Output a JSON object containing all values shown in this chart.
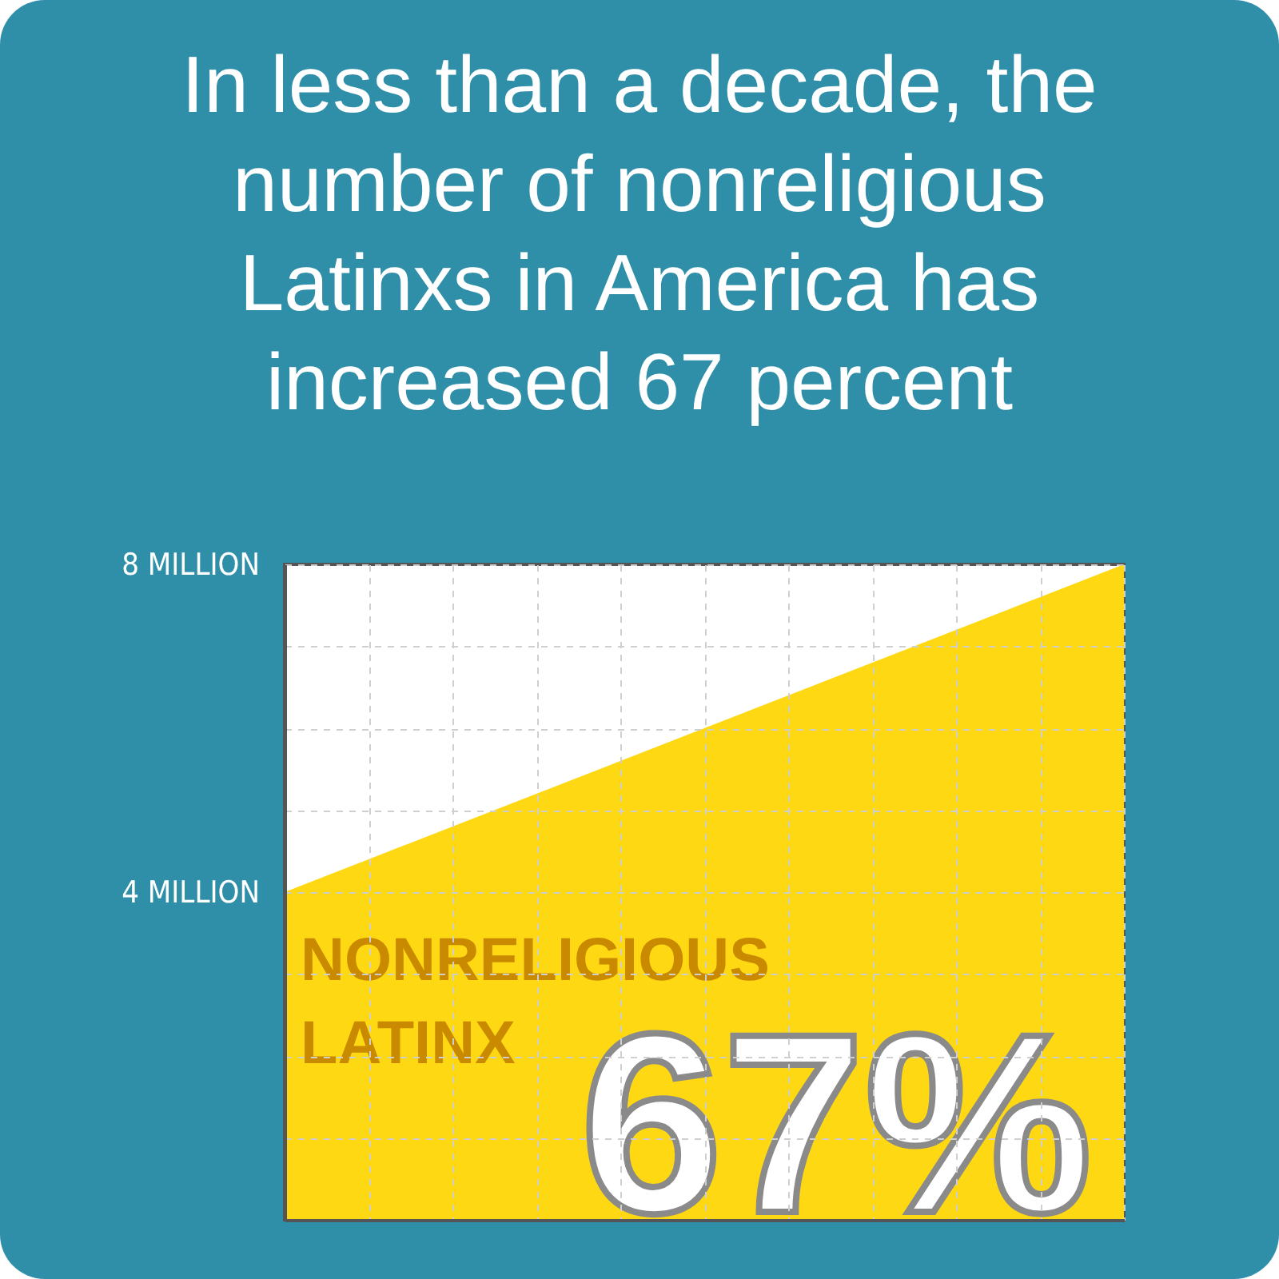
{
  "chart_data": {
    "type": "area",
    "title": "In less than a decade, the number of nonreligious Latinxs in America has increased 67 percent",
    "categories": [
      null,
      null,
      null,
      null,
      null,
      null,
      null,
      null,
      null,
      null,
      null
    ],
    "values": [
      4,
      4.4,
      4.8,
      5.2,
      5.6,
      6,
      6.4,
      6.8,
      7.2,
      7.6,
      8
    ],
    "color": "#ffd814",
    "ylim": [
      0,
      8
    ],
    "yticks": [
      {
        "value": 0,
        "label": null
      },
      {
        "value": 1,
        "label": null
      },
      {
        "value": 2,
        "label": null
      },
      {
        "value": 3,
        "label": null
      },
      {
        "value": 4,
        "label": "4 MILLION"
      },
      {
        "value": 5,
        "label": null
      },
      {
        "value": 6,
        "label": null
      },
      {
        "value": 7,
        "label": null
      },
      {
        "value": 8,
        "label": "8 MILLION"
      }
    ],
    "grid": true,
    "tick_labels": "y",
    "annotations": [
      "NONRELIGIOUS LATINX",
      "67%"
    ]
  }
}
